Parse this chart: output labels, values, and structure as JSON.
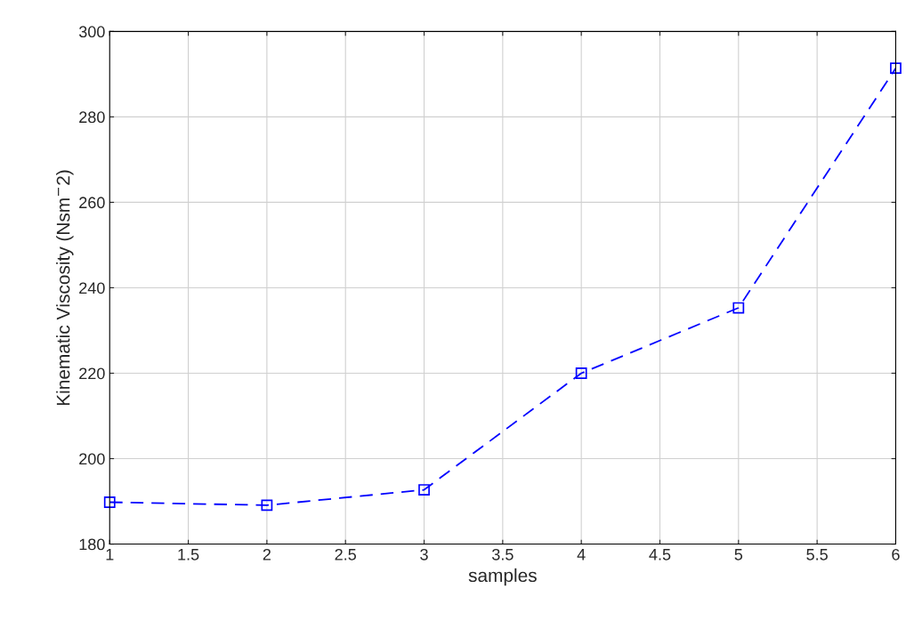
{
  "chart_data": {
    "type": "line",
    "xlabel": "samples",
    "ylabel": "Kinematic Viscosity (Nsm$^{−}$2)",
    "x": [
      1,
      2,
      3,
      4,
      5,
      6
    ],
    "series": [
      {
        "color": "#0000ff",
        "values": [
          189.8,
          189.1,
          192.7,
          220,
          235.3,
          291.4
        ]
      }
    ],
    "xlim": [
      1,
      6
    ],
    "xticks": [
      1,
      1.5,
      2,
      2.5,
      3,
      3.5,
      4,
      4.5,
      5,
      5.5,
      6
    ],
    "ylim": [
      180,
      300
    ],
    "yticks": [
      180,
      200,
      220,
      240,
      260,
      280,
      300
    ],
    "grid": true,
    "marker": "square",
    "line_style": "dashed"
  }
}
